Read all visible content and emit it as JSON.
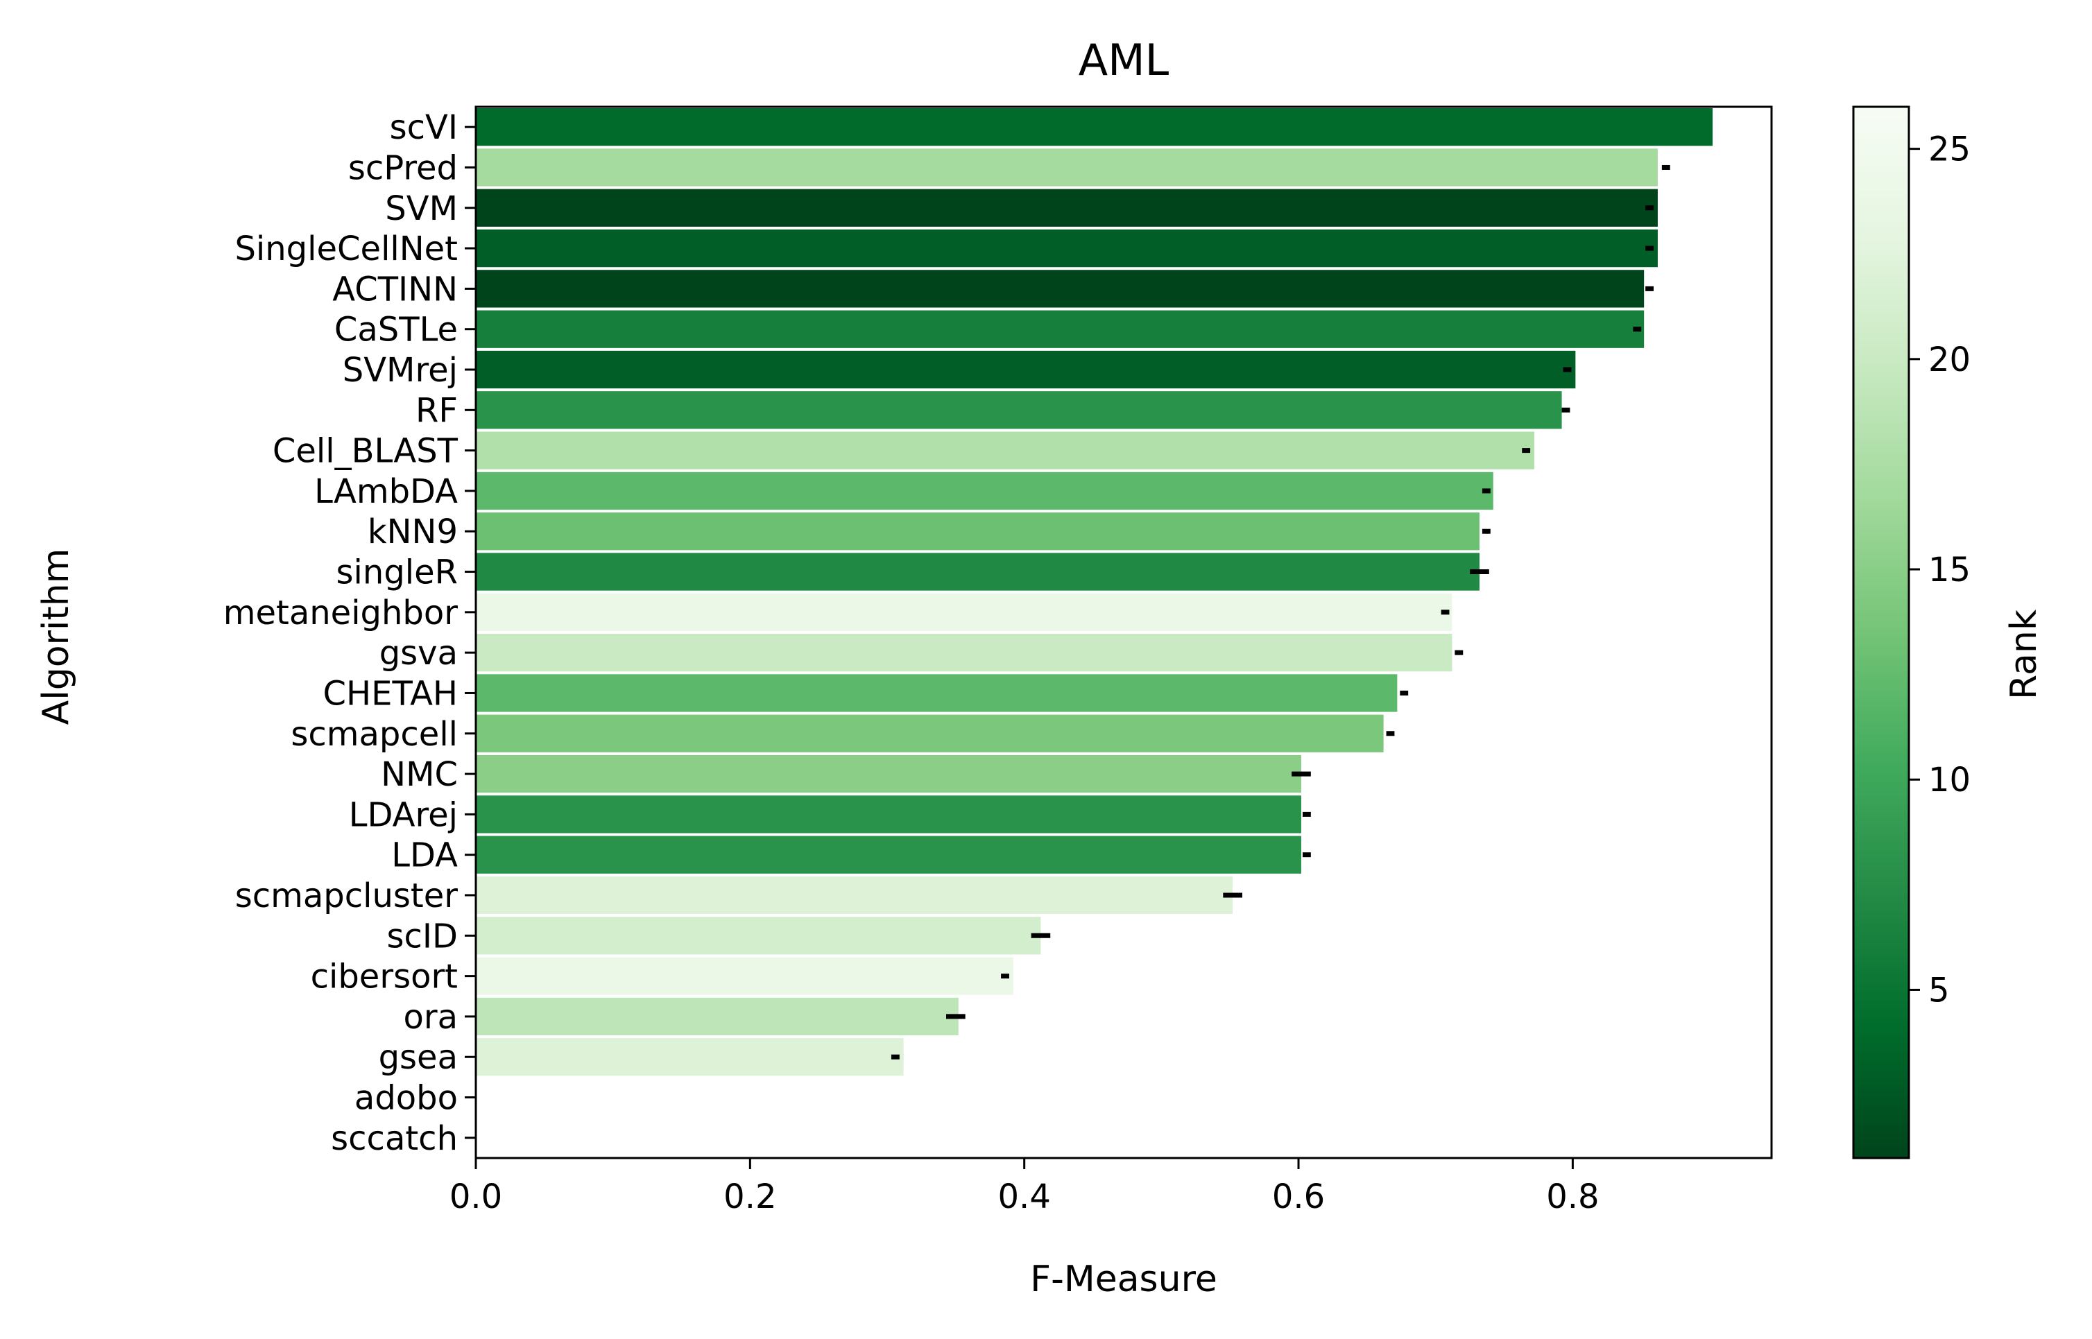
{
  "chart_data": {
    "type": "bar",
    "orientation": "horizontal",
    "title": "AML",
    "xlabel": "F-Measure",
    "ylabel": "Algorithm",
    "xlim": [
      0,
      0.945
    ],
    "x_ticks": [
      "0.0",
      "0.2",
      "0.4",
      "0.6",
      "0.8"
    ],
    "grid": false,
    "legend": "none",
    "categories": [
      "scVI",
      "scPred",
      "SVM",
      "SingleCellNet",
      "ACTINN",
      "CaSTLe",
      "SVMrej",
      "RF",
      "Cell_BLAST",
      "LAmbDA",
      "kNN9",
      "singleR",
      "metaneighbor",
      "gsva",
      "CHETAH",
      "scmapcell",
      "NMC",
      "LDArej",
      "LDA",
      "scmapcluster",
      "scID",
      "cibersort",
      "ora",
      "gsea",
      "adobo",
      "sccatch"
    ],
    "values": [
      0.902,
      0.862,
      0.862,
      0.862,
      0.852,
      0.852,
      0.802,
      0.792,
      0.772,
      0.742,
      0.732,
      0.732,
      0.712,
      0.712,
      0.672,
      0.662,
      0.602,
      0.602,
      0.602,
      0.552,
      0.412,
      0.392,
      0.352,
      0.312,
      0,
      0
    ],
    "error_center": [
      null,
      0.868,
      0.856,
      0.856,
      0.856,
      0.847,
      0.796,
      0.795,
      0.766,
      0.737,
      0.737,
      0.732,
      0.707,
      0.717,
      0.677,
      0.667,
      0.602,
      0.606,
      0.606,
      0.552,
      0.412,
      0.386,
      0.35,
      0.306,
      null,
      null
    ],
    "error_halfwidth": [
      null,
      0.003,
      0.003,
      0.003,
      0.003,
      0.003,
      0.003,
      0.003,
      0.003,
      0.003,
      0.003,
      0.007,
      0.003,
      0.003,
      0.003,
      0.003,
      0.007,
      0.003,
      0.003,
      0.007,
      0.007,
      0.003,
      0.007,
      0.003,
      null,
      null
    ],
    "rank": [
      4,
      17,
      1,
      3,
      1,
      6,
      3,
      8,
      18,
      12,
      13,
      7,
      24,
      20,
      12,
      14,
      15,
      8,
      8,
      22,
      21,
      24,
      19,
      22,
      null,
      null
    ],
    "colorbar": {
      "label": "Rank",
      "cmap": "Greens_r",
      "range": [
        1,
        26
      ],
      "ticks": [
        "5",
        "10",
        "15",
        "20",
        "25"
      ],
      "stops": [
        "#00441b",
        "#006d2c",
        "#238b45",
        "#41ab5d",
        "#74c476",
        "#a1d99b",
        "#c7e9c0",
        "#e5f5e0",
        "#f7fcf5"
      ]
    }
  }
}
